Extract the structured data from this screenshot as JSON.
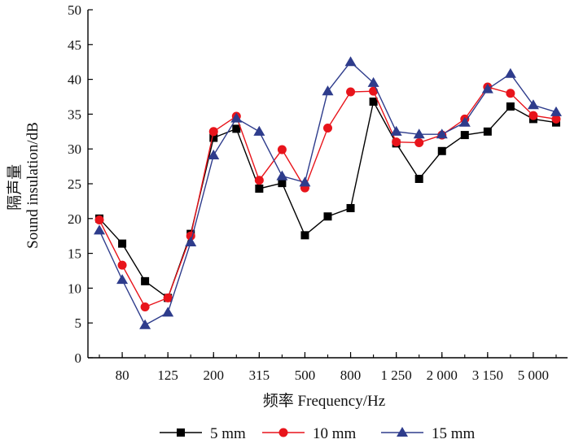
{
  "chart_data": {
    "type": "line",
    "title": "",
    "xlabel": "频率 Frequency/Hz",
    "ylabel_cn": "隔声量",
    "ylabel_en": "Sound insulation/dB",
    "ylim": [
      0,
      50
    ],
    "yticks": [
      0,
      5,
      10,
      15,
      20,
      25,
      30,
      35,
      40,
      45,
      50
    ],
    "x_points": [
      "63",
      "80",
      "100",
      "125",
      "160",
      "200",
      "250",
      "315",
      "400",
      "500",
      "630",
      "800",
      "1000",
      "1250",
      "1600",
      "2000",
      "2500",
      "3150",
      "4000",
      "5000",
      "6300"
    ],
    "x_tick_labels": [
      {
        "index": 1,
        "label": "80"
      },
      {
        "index": 3,
        "label": "125"
      },
      {
        "index": 5,
        "label": "200"
      },
      {
        "index": 7,
        "label": "315"
      },
      {
        "index": 9,
        "label": "500"
      },
      {
        "index": 11,
        "label": "800"
      },
      {
        "index": 13,
        "label": "1 250"
      },
      {
        "index": 15,
        "label": "2 000"
      },
      {
        "index": 17,
        "label": "3 150"
      },
      {
        "index": 19,
        "label": "5 000"
      }
    ],
    "series": [
      {
        "name": "5 mm",
        "marker": "square",
        "color": "#000000",
        "values": [
          20.0,
          16.4,
          11.0,
          8.6,
          17.8,
          31.6,
          32.9,
          24.3,
          25.1,
          17.6,
          20.3,
          21.5,
          36.8,
          30.8,
          25.7,
          29.7,
          32.0,
          32.5,
          36.1,
          34.3,
          33.8
        ]
      },
      {
        "name": "10 mm",
        "marker": "circle",
        "color": "#e8141b",
        "values": [
          19.8,
          13.3,
          7.3,
          8.6,
          17.5,
          32.5,
          34.7,
          25.5,
          29.9,
          24.4,
          33.0,
          38.2,
          38.3,
          31.0,
          30.9,
          32.0,
          34.3,
          38.9,
          38.0,
          34.8,
          34.3
        ]
      },
      {
        "name": "15 mm",
        "marker": "triangle",
        "color": "#2e3c8c",
        "values": [
          18.3,
          11.2,
          4.7,
          6.5,
          16.6,
          29.1,
          34.4,
          32.5,
          26.1,
          25.2,
          38.3,
          42.5,
          39.5,
          32.5,
          32.1,
          32.1,
          33.8,
          38.6,
          40.8,
          36.3,
          35.3
        ]
      }
    ]
  }
}
